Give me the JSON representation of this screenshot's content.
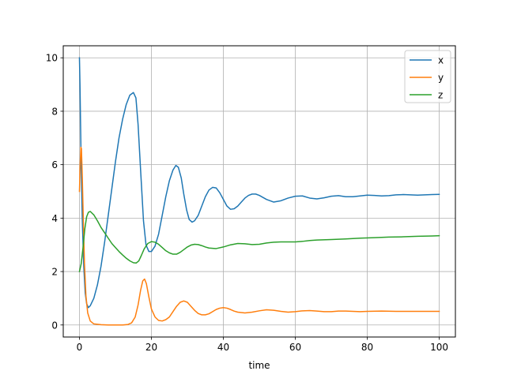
{
  "chart_data": {
    "type": "line",
    "title": "",
    "xlabel": "time",
    "ylabel": "",
    "xlim": [
      -4.5,
      104.5
    ],
    "ylim": [
      -0.45,
      10.45
    ],
    "xticks": [
      0,
      20,
      40,
      60,
      80,
      100
    ],
    "yticks": [
      0,
      2,
      4,
      6,
      8,
      10
    ],
    "grid": true,
    "legend_position": "upper right",
    "series": [
      {
        "name": "x",
        "color": "#1f77b4",
        "points": [
          [
            0,
            10.0
          ],
          [
            0.15,
            9.0
          ],
          [
            0.3,
            7.6
          ],
          [
            0.5,
            5.9
          ],
          [
            0.8,
            3.9
          ],
          [
            1.2,
            2.2
          ],
          [
            1.6,
            1.2
          ],
          [
            2.0,
            0.8
          ],
          [
            2.5,
            0.65
          ],
          [
            3.0,
            0.72
          ],
          [
            4.0,
            1.0
          ],
          [
            5.0,
            1.5
          ],
          [
            6.0,
            2.2
          ],
          [
            7.0,
            3.1
          ],
          [
            8.0,
            4.1
          ],
          [
            9.0,
            5.1
          ],
          [
            10.0,
            6.1
          ],
          [
            11.0,
            7.0
          ],
          [
            12.0,
            7.7
          ],
          [
            13.0,
            8.25
          ],
          [
            14.0,
            8.6
          ],
          [
            15.0,
            8.7
          ],
          [
            15.7,
            8.5
          ],
          [
            16.3,
            7.5
          ],
          [
            17.0,
            5.8
          ],
          [
            17.8,
            3.9
          ],
          [
            18.5,
            3.0
          ],
          [
            19.3,
            2.75
          ],
          [
            20.0,
            2.75
          ],
          [
            21.0,
            2.95
          ],
          [
            22.0,
            3.4
          ],
          [
            23.0,
            4.1
          ],
          [
            24.0,
            4.8
          ],
          [
            25.0,
            5.4
          ],
          [
            26.0,
            5.8
          ],
          [
            26.8,
            5.97
          ],
          [
            27.5,
            5.9
          ],
          [
            28.3,
            5.5
          ],
          [
            29.0,
            4.9
          ],
          [
            29.8,
            4.3
          ],
          [
            30.5,
            3.95
          ],
          [
            31.3,
            3.85
          ],
          [
            32.0,
            3.9
          ],
          [
            33.0,
            4.1
          ],
          [
            34.0,
            4.45
          ],
          [
            35.0,
            4.8
          ],
          [
            36.0,
            5.05
          ],
          [
            37.0,
            5.15
          ],
          [
            38.0,
            5.13
          ],
          [
            39.0,
            4.95
          ],
          [
            40.0,
            4.7
          ],
          [
            41.0,
            4.45
          ],
          [
            42.0,
            4.33
          ],
          [
            43.0,
            4.35
          ],
          [
            44.0,
            4.45
          ],
          [
            45.0,
            4.6
          ],
          [
            46.0,
            4.75
          ],
          [
            47.0,
            4.85
          ],
          [
            48.0,
            4.9
          ],
          [
            49.0,
            4.9
          ],
          [
            50.0,
            4.85
          ],
          [
            52.0,
            4.7
          ],
          [
            54.0,
            4.6
          ],
          [
            56.0,
            4.65
          ],
          [
            58.0,
            4.75
          ],
          [
            60.0,
            4.82
          ],
          [
            62.0,
            4.83
          ],
          [
            64.0,
            4.75
          ],
          [
            66.0,
            4.72
          ],
          [
            68.0,
            4.76
          ],
          [
            70.0,
            4.82
          ],
          [
            72.0,
            4.84
          ],
          [
            74.0,
            4.8
          ],
          [
            76.0,
            4.8
          ],
          [
            78.0,
            4.83
          ],
          [
            80.0,
            4.86
          ],
          [
            82.0,
            4.85
          ],
          [
            84.0,
            4.83
          ],
          [
            86.0,
            4.84
          ],
          [
            88.0,
            4.87
          ],
          [
            90.0,
            4.88
          ],
          [
            92.0,
            4.87
          ],
          [
            94.0,
            4.86
          ],
          [
            96.0,
            4.87
          ],
          [
            98.0,
            4.88
          ],
          [
            100.0,
            4.89
          ]
        ]
      },
      {
        "name": "y",
        "color": "#ff7f0e",
        "points": [
          [
            0,
            5.0
          ],
          [
            0.2,
            6.0
          ],
          [
            0.4,
            6.65
          ],
          [
            0.55,
            6.6
          ],
          [
            0.8,
            5.5
          ],
          [
            1.1,
            3.8
          ],
          [
            1.4,
            2.3
          ],
          [
            1.8,
            1.1
          ],
          [
            2.3,
            0.45
          ],
          [
            3.0,
            0.15
          ],
          [
            4.0,
            0.04
          ],
          [
            6.0,
            0.01
          ],
          [
            8.0,
            0.0
          ],
          [
            10.0,
            0.0
          ],
          [
            12.0,
            0.0
          ],
          [
            13.5,
            0.02
          ],
          [
            14.5,
            0.08
          ],
          [
            15.5,
            0.3
          ],
          [
            16.3,
            0.75
          ],
          [
            17.0,
            1.3
          ],
          [
            17.6,
            1.65
          ],
          [
            18.1,
            1.72
          ],
          [
            18.6,
            1.55
          ],
          [
            19.3,
            1.05
          ],
          [
            20.0,
            0.6
          ],
          [
            21.0,
            0.3
          ],
          [
            22.0,
            0.17
          ],
          [
            23.0,
            0.15
          ],
          [
            24.0,
            0.2
          ],
          [
            25.0,
            0.3
          ],
          [
            26.0,
            0.5
          ],
          [
            27.0,
            0.7
          ],
          [
            28.0,
            0.85
          ],
          [
            29.0,
            0.9
          ],
          [
            30.0,
            0.85
          ],
          [
            31.0,
            0.7
          ],
          [
            32.0,
            0.55
          ],
          [
            33.0,
            0.43
          ],
          [
            34.0,
            0.38
          ],
          [
            35.0,
            0.38
          ],
          [
            36.0,
            0.42
          ],
          [
            37.0,
            0.5
          ],
          [
            38.0,
            0.58
          ],
          [
            39.0,
            0.63
          ],
          [
            40.0,
            0.65
          ],
          [
            41.0,
            0.63
          ],
          [
            42.0,
            0.58
          ],
          [
            43.0,
            0.52
          ],
          [
            44.0,
            0.48
          ],
          [
            46.0,
            0.45
          ],
          [
            48.0,
            0.48
          ],
          [
            50.0,
            0.53
          ],
          [
            52.0,
            0.57
          ],
          [
            54.0,
            0.55
          ],
          [
            56.0,
            0.51
          ],
          [
            58.0,
            0.48
          ],
          [
            60.0,
            0.5
          ],
          [
            62.0,
            0.53
          ],
          [
            64.0,
            0.54
          ],
          [
            66.0,
            0.52
          ],
          [
            68.0,
            0.5
          ],
          [
            70.0,
            0.5
          ],
          [
            72.0,
            0.52
          ],
          [
            74.0,
            0.52
          ],
          [
            76.0,
            0.51
          ],
          [
            78.0,
            0.5
          ],
          [
            80.0,
            0.51
          ],
          [
            84.0,
            0.52
          ],
          [
            88.0,
            0.51
          ],
          [
            92.0,
            0.51
          ],
          [
            96.0,
            0.51
          ],
          [
            100.0,
            0.51
          ]
        ]
      },
      {
        "name": "z",
        "color": "#2ca02c",
        "points": [
          [
            0,
            2.0
          ],
          [
            0.5,
            2.3
          ],
          [
            1.0,
            2.9
          ],
          [
            1.5,
            3.6
          ],
          [
            2.0,
            4.05
          ],
          [
            2.5,
            4.22
          ],
          [
            3.0,
            4.25
          ],
          [
            4.0,
            4.12
          ],
          [
            5.0,
            3.9
          ],
          [
            6.0,
            3.65
          ],
          [
            7.0,
            3.45
          ],
          [
            8.0,
            3.25
          ],
          [
            9.0,
            3.05
          ],
          [
            10.0,
            2.9
          ],
          [
            11.0,
            2.75
          ],
          [
            12.0,
            2.62
          ],
          [
            13.0,
            2.5
          ],
          [
            14.0,
            2.4
          ],
          [
            15.0,
            2.33
          ],
          [
            15.8,
            2.32
          ],
          [
            16.5,
            2.4
          ],
          [
            17.2,
            2.6
          ],
          [
            18.0,
            2.85
          ],
          [
            19.0,
            3.05
          ],
          [
            20.0,
            3.12
          ],
          [
            21.0,
            3.1
          ],
          [
            22.0,
            3.02
          ],
          [
            23.0,
            2.9
          ],
          [
            24.0,
            2.78
          ],
          [
            25.0,
            2.7
          ],
          [
            26.0,
            2.65
          ],
          [
            27.0,
            2.65
          ],
          [
            28.0,
            2.72
          ],
          [
            29.0,
            2.82
          ],
          [
            30.0,
            2.92
          ],
          [
            31.0,
            2.99
          ],
          [
            32.0,
            3.02
          ],
          [
            33.0,
            3.01
          ],
          [
            34.0,
            2.97
          ],
          [
            35.0,
            2.92
          ],
          [
            36.0,
            2.88
          ],
          [
            38.0,
            2.86
          ],
          [
            40.0,
            2.92
          ],
          [
            42.0,
            3.0
          ],
          [
            44.0,
            3.05
          ],
          [
            46.0,
            3.04
          ],
          [
            48.0,
            3.01
          ],
          [
            50.0,
            3.02
          ],
          [
            52.0,
            3.07
          ],
          [
            54.0,
            3.1
          ],
          [
            56.0,
            3.11
          ],
          [
            58.0,
            3.11
          ],
          [
            60.0,
            3.11
          ],
          [
            62.0,
            3.13
          ],
          [
            64.0,
            3.16
          ],
          [
            66.0,
            3.18
          ],
          [
            70.0,
            3.2
          ],
          [
            74.0,
            3.22
          ],
          [
            78.0,
            3.25
          ],
          [
            82.0,
            3.27
          ],
          [
            86.0,
            3.29
          ],
          [
            90.0,
            3.3
          ],
          [
            94.0,
            3.32
          ],
          [
            98.0,
            3.33
          ],
          [
            100.0,
            3.34
          ]
        ]
      }
    ]
  }
}
